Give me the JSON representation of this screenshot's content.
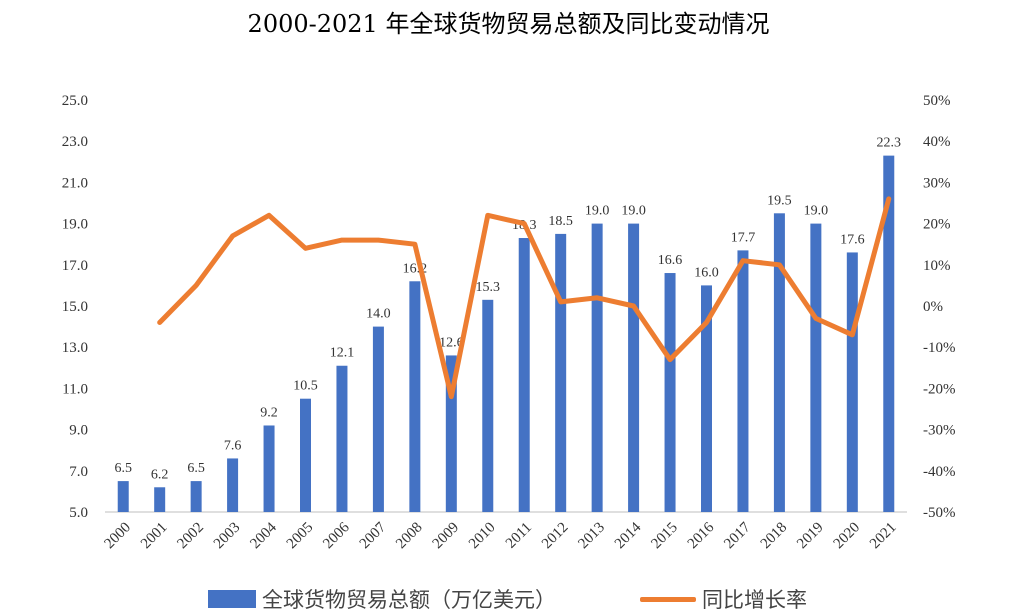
{
  "chart_data": {
    "type": "bar",
    "title": "2000-2021 年全球货物贸易总额及同比变动情况",
    "categories": [
      "2000",
      "2001",
      "2002",
      "2003",
      "2004",
      "2005",
      "2006",
      "2007",
      "2008",
      "2009",
      "2010",
      "2011",
      "2012",
      "2013",
      "2014",
      "2015",
      "2016",
      "2017",
      "2018",
      "2019",
      "2020",
      "2021"
    ],
    "series": [
      {
        "name": "全球货物贸易总额（万亿美元）",
        "type": "bar",
        "axis": "left",
        "color": "#4472C4",
        "values": [
          6.5,
          6.2,
          6.5,
          7.6,
          9.2,
          10.5,
          12.1,
          14.0,
          16.2,
          12.6,
          15.3,
          18.3,
          18.5,
          19.0,
          19.0,
          16.6,
          16.0,
          17.7,
          19.5,
          19.0,
          17.6,
          22.3
        ],
        "labels": [
          "6.5",
          "6.2",
          "6.5",
          "7.6",
          "9.2",
          "10.5",
          "12.1",
          "14.0",
          "16.2",
          "12.6",
          "15.3",
          "18.3",
          "18.5",
          "19.0",
          "19.0",
          "16.6",
          "16.0",
          "17.7",
          "19.5",
          "19.0",
          "17.6",
          "22.3"
        ]
      },
      {
        "name": "同比增长率",
        "type": "line",
        "axis": "right",
        "color": "#ED7D31",
        "values": [
          null,
          -4,
          5,
          17,
          22,
          14,
          16,
          16,
          15,
          -22,
          22,
          20,
          1,
          2,
          0,
          -13,
          -4,
          11,
          10,
          -3,
          -7,
          26
        ]
      }
    ],
    "y_left": {
      "min": 5,
      "max": 25,
      "ticks": [
        "5.0",
        "7.0",
        "9.0",
        "11.0",
        "13.0",
        "15.0",
        "17.0",
        "19.0",
        "21.0",
        "23.0",
        "25.0"
      ]
    },
    "y_right": {
      "min": -50,
      "max": 50,
      "ticks": [
        "-50%",
        "-40%",
        "-30%",
        "-20%",
        "-10%",
        "0%",
        "10%",
        "20%",
        "30%",
        "40%",
        "50%"
      ]
    },
    "grid": false,
    "legend_position": "bottom"
  }
}
